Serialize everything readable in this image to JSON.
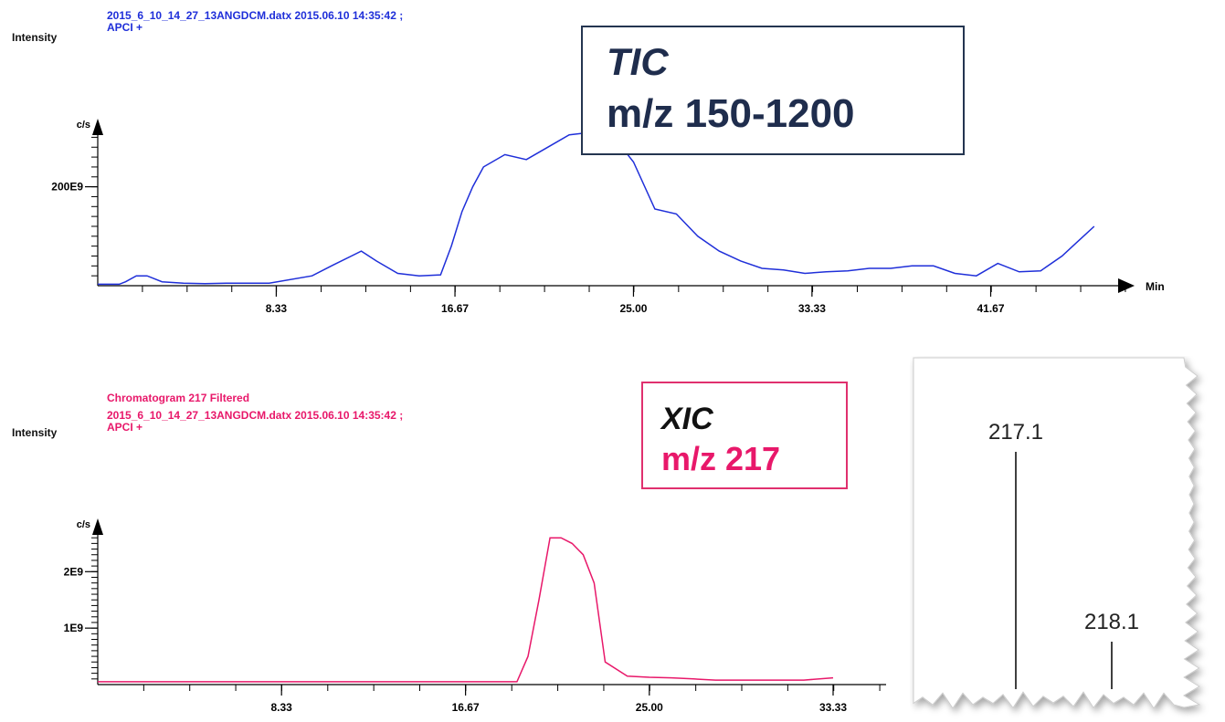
{
  "tic_header": {
    "axis_label": "Intensity",
    "file_line": "2015_6_10_14_27_13ANGDCM.datx 2015.06.10 14:35:42 ;",
    "mode": "APCI +"
  },
  "xic_header": {
    "axis_label": "Intensity",
    "title": "Chromatogram 217 Filtered",
    "file_line": "2015_6_10_14_27_13ANGDCM.datx 2015.06.10 14:35:42 ;",
    "mode": "APCI +"
  },
  "tic_box": {
    "line1": "TIC",
    "line2": "m/z 150-1200"
  },
  "xic_box": {
    "line1": "XIC",
    "line2": "m/z 217"
  },
  "colors": {
    "tic": "#1f2fd9",
    "xic": "#e8186a",
    "tic_box_border": "#243550",
    "xic_box_border": "#e0306e"
  },
  "chart_data": [
    {
      "type": "line",
      "series_color": "#1f2fd9",
      "ylabel": "c/s",
      "xlabel": "Min",
      "x_ticks": [
        "8.33",
        "16.67",
        "25.00",
        "33.33",
        "41.67"
      ],
      "x_tick_values": [
        8.33,
        16.67,
        25.0,
        33.33,
        41.67
      ],
      "y_ticks": [
        "200E9"
      ],
      "y_tick_values": [
        200
      ],
      "xlim": [
        0,
        48
      ],
      "ylim": [
        0,
        310
      ],
      "y_unit_note": "E9 c/s",
      "x": [
        0,
        1,
        1.3,
        1.8,
        2.3,
        3,
        4,
        5,
        6,
        8,
        10,
        11,
        12.3,
        13,
        14,
        15,
        16,
        16.5,
        17,
        17.5,
        18,
        19,
        20,
        21,
        22,
        23,
        24,
        25,
        26,
        27,
        28,
        29,
        30,
        31,
        32,
        33,
        34,
        35,
        36,
        37,
        38,
        39,
        40,
        41,
        42,
        43,
        44,
        45,
        45.5,
        46.5
      ],
      "y": [
        3,
        3,
        8,
        20,
        20,
        8,
        5,
        4,
        5,
        5,
        20,
        42,
        70,
        50,
        25,
        20,
        22,
        80,
        150,
        200,
        240,
        265,
        255,
        280,
        305,
        310,
        305,
        250,
        155,
        145,
        100,
        70,
        50,
        35,
        32,
        25,
        28,
        30,
        35,
        35,
        40,
        40,
        25,
        20,
        45,
        28,
        30,
        60,
        80,
        120
      ]
    },
    {
      "type": "line",
      "series_color": "#e8186a",
      "ylabel": "c/s",
      "x_ticks": [
        "8.33",
        "16.67",
        "25.00",
        "33.33"
      ],
      "x_tick_values": [
        8.33,
        16.67,
        25.0,
        33.33
      ],
      "y_ticks": [
        "1E9",
        "2E9"
      ],
      "y_tick_values": [
        1,
        2
      ],
      "xlim": [
        0,
        33.33
      ],
      "ylim": [
        0,
        2.7
      ],
      "x": [
        0,
        2,
        4,
        6,
        8,
        10,
        12,
        14,
        15,
        15.5,
        16,
        16.5,
        17,
        17.5,
        18,
        18.5,
        19,
        19.5,
        20,
        20.5,
        21,
        21.5,
        22,
        22.5,
        23,
        24,
        25,
        26,
        27,
        28,
        29,
        30,
        31,
        32,
        33.33
      ],
      "y": [
        0.05,
        0.05,
        0.05,
        0.05,
        0.05,
        0.05,
        0.05,
        0.05,
        0.05,
        0.05,
        0.05,
        0.05,
        0.05,
        0.05,
        0.05,
        0.05,
        0.05,
        0.5,
        1.5,
        2.6,
        2.6,
        2.5,
        2.3,
        1.8,
        0.4,
        0.15,
        0.13,
        0.12,
        0.1,
        0.08,
        0.08,
        0.08,
        0.08,
        0.08,
        0.12
      ]
    },
    {
      "type": "bar",
      "kind": "mass-spectrum-inset",
      "labels": [
        "217.1",
        "218.1"
      ],
      "values": [
        100,
        20
      ]
    }
  ]
}
